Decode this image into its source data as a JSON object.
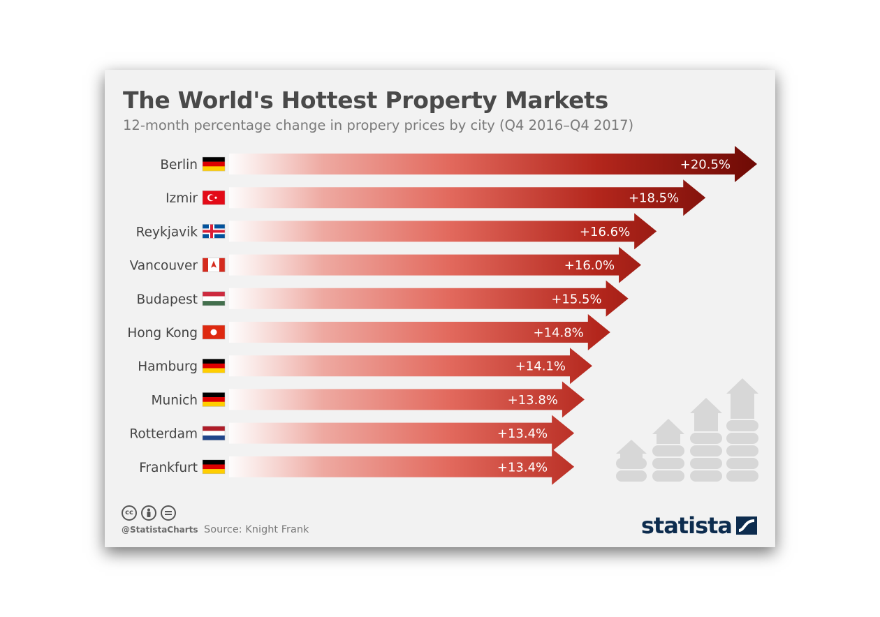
{
  "title": "The World's Hottest Property Markets",
  "subtitle": "12-month percentage change in propery prices by city (Q4 2016–Q4 2017)",
  "footer": {
    "handle": "@StatistaCharts",
    "source": "Source: Knight Frank",
    "brand": "statista",
    "license_icons": [
      "cc-icon",
      "by-icon",
      "nd-icon"
    ]
  },
  "colors": {
    "bar_start": "#ffffff",
    "bar_mid": "#e8786d",
    "bar_end": "#7a0c06",
    "text": "#444444"
  },
  "chart_data": {
    "type": "bar",
    "orientation": "horizontal",
    "categories": [
      "Berlin",
      "Izmir",
      "Reykjavik",
      "Vancouver",
      "Budapest",
      "Hong Kong",
      "Hamburg",
      "Munich",
      "Rotterdam",
      "Frankfurt"
    ],
    "flags": [
      "germany",
      "turkey",
      "iceland",
      "canada",
      "hungary",
      "hong-kong",
      "germany",
      "germany",
      "netherlands",
      "germany"
    ],
    "values": [
      20.5,
      18.5,
      16.6,
      16.0,
      15.5,
      14.8,
      14.1,
      13.8,
      13.4,
      13.4
    ],
    "labels": [
      "+20.5%",
      "+18.5%",
      "+16.6%",
      "+16.0%",
      "+15.5%",
      "+14.8%",
      "+14.1%",
      "+13.8%",
      "+13.4%",
      "+13.4%"
    ],
    "unit": "%",
    "xlabel": "",
    "ylabel": "",
    "grid": false
  }
}
